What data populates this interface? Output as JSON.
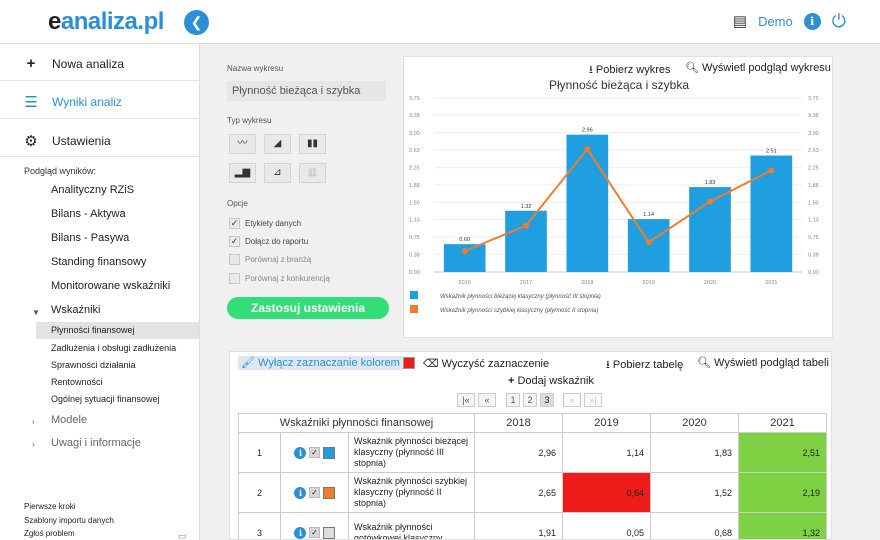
{
  "header": {
    "logo_e": "e",
    "logo_rest": "analiza.pl",
    "back_icon": "chevron-left-icon",
    "user": "Demo"
  },
  "sidebar": {
    "main": [
      {
        "label": "Nowa analiza",
        "icon": "plus-icon"
      },
      {
        "label": "Wyniki analiz",
        "icon": "list-icon"
      },
      {
        "label": "Ustawienia",
        "icon": "gear-icon"
      }
    ],
    "preview_label": "Podgląd wyników:",
    "sub": [
      "Analityczny RZiS",
      "Bilans - Aktywa",
      "Bilans - Pasywa",
      "Standing finansowy",
      "Monitorowane wskaźniki",
      "Wskaźniki"
    ],
    "leaves": [
      "Płynności finansowej",
      "Zadłużenia i obsługi zadłużenia",
      "Sprawności działania",
      "Rentowności",
      "Ogólnej sytuacji finansowej"
    ],
    "sub_after": [
      "Modele",
      "Uwagi i informacje"
    ],
    "footer": [
      "Pierwsze kroki",
      "Szablony importu danych",
      "Zgłoś problem"
    ]
  },
  "options": {
    "chart_name_label": "Nazwa wykresu",
    "chart_name_value": "Płynność bieżąca i szybka",
    "chart_type_label": "Typ wykresu",
    "options_label": "Opcje",
    "checkboxes": [
      {
        "label": "Etykiety danych",
        "checked": true
      },
      {
        "label": "Dołącz do raportu",
        "checked": true
      },
      {
        "label": "Porównaj z branżą",
        "checked": false
      },
      {
        "label": "Porównaj z konkurencją",
        "checked": false
      }
    ],
    "apply_label": "Zastosuj ustawienia"
  },
  "chart_panel": {
    "download_label": "Pobierz wykres",
    "preview_label": "Wyświetl podgląd wykresu"
  },
  "chart_data": {
    "type": "bar",
    "title": "Płynność bieżąca i szybka",
    "categories": [
      "2016",
      "2017",
      "2018",
      "2019",
      "2020",
      "2021"
    ],
    "yticks": [
      "0.00",
      "0.38",
      "0.75",
      "1.13",
      "1.50",
      "1.88",
      "2.25",
      "2.63",
      "3.00",
      "3.38",
      "3.75"
    ],
    "ylim": [
      0,
      3.75
    ],
    "series": [
      {
        "name": "Wskaźnik płynności bieżącej klasyczny (płynność III stopnia)",
        "type": "bar",
        "color": "#1f9fe0",
        "values": [
          0.6,
          1.32,
          2.96,
          1.14,
          1.83,
          2.51
        ],
        "labels": [
          "0.60",
          "1.32",
          "2.96",
          "1.14",
          "1.83",
          "2.51"
        ]
      },
      {
        "name": "Wskaźnik płynności szybkiej klasyczny (płynność II stopnia)",
        "type": "line",
        "color": "#f07c2c",
        "values": [
          0.45,
          1.0,
          2.65,
          0.64,
          1.52,
          2.19
        ]
      }
    ]
  },
  "table_panel": {
    "toggle_color": "Wyłącz zaznaczanie kolorem",
    "clear_label": "Wyczyść zaznaczenie",
    "download_label": "Pobierz tabelę",
    "preview_label": "Wyświetl podgląd tabeli",
    "add_label": "Dodaj wskaźnik",
    "pager": [
      "|«",
      "«",
      "1",
      "2",
      "3",
      "»",
      "»|"
    ],
    "header_title": "Wskaźniki płynności finansowej",
    "years": [
      "2018",
      "2019",
      "2020",
      "2021"
    ],
    "rows": [
      {
        "lp": "1",
        "name": "Wskaźnik płynności bieżącej klasyczny (płynność III stopnia)",
        "swatch": "#1f9fe0",
        "values": [
          "2,96",
          "1,14",
          "1,83",
          "2,51"
        ],
        "highlights": [
          "",
          "",
          "",
          "#7ed143"
        ]
      },
      {
        "lp": "2",
        "name": "Wskaźnik płynności szybkiej klasyczny (płynność II stopnia)",
        "swatch": "#f07c2c",
        "values": [
          "2,65",
          "0,64",
          "1,52",
          "2,19"
        ],
        "highlights": [
          "",
          "#ee1b1b",
          "",
          "#7ed143"
        ]
      },
      {
        "lp": "3",
        "name": "Wskaźnik płynności gotówkowej klasyczny",
        "swatch": "#dddddd",
        "values": [
          "1,91",
          "0,05",
          "0,68",
          "1,32"
        ],
        "highlights": [
          "",
          "",
          "",
          "#7ed143"
        ]
      }
    ]
  }
}
